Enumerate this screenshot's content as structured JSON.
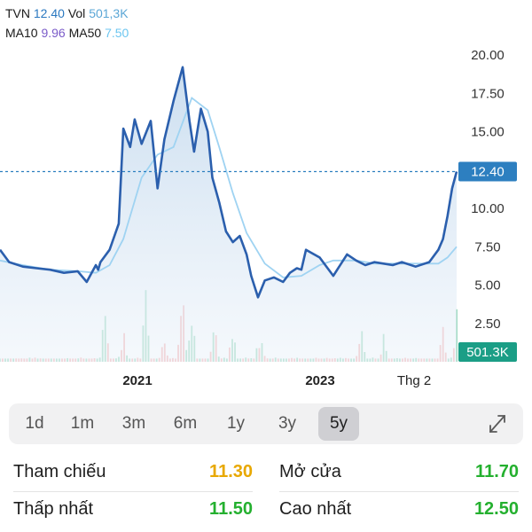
{
  "legend": {
    "ticker": "TVN",
    "price": "12.40",
    "vol_label": "Vol",
    "vol_value": "501,3K",
    "ma10_label": "MA10",
    "ma10_value": "9.96",
    "ma50_label": "MA50",
    "ma50_value": "7.50"
  },
  "chart_data": {
    "type": "line",
    "title": "",
    "xlabel": "",
    "ylabel": "",
    "ylim": [
      0,
      20
    ],
    "y_ticks": [
      "20.00",
      "17.50",
      "15.00",
      "12.50",
      "10.00",
      "7.50",
      "5.00",
      "2.50"
    ],
    "x_labels": [
      "2021",
      "2023",
      "Thg 2"
    ],
    "current_price_label": "12.40",
    "current_volume_label": "501.3K",
    "colors": {
      "price_line": "#2b5fad",
      "ma_line": "#9fd3f2",
      "area_fill_top": "#c8dcef",
      "volume_up": "#63c39a",
      "volume_down": "#f0898a",
      "last_price_badge": "#2d7fc0",
      "volume_badge": "#1b9e86"
    },
    "series": [
      {
        "name": "TVN",
        "x": [
          0,
          0.02,
          0.05,
          0.08,
          0.11,
          0.14,
          0.17,
          0.19,
          0.21,
          0.215,
          0.22,
          0.24,
          0.26,
          0.27,
          0.285,
          0.295,
          0.31,
          0.33,
          0.345,
          0.36,
          0.38,
          0.4,
          0.415,
          0.425,
          0.44,
          0.455,
          0.465,
          0.48,
          0.495,
          0.51,
          0.525,
          0.54,
          0.55,
          0.565,
          0.58,
          0.6,
          0.62,
          0.635,
          0.65,
          0.66,
          0.67,
          0.7,
          0.73,
          0.76,
          0.78,
          0.8,
          0.82,
          0.84,
          0.86,
          0.88,
          0.91,
          0.94,
          0.96,
          0.97,
          0.98,
          0.99,
          1.0
        ],
        "values": [
          7.3,
          6.5,
          6.2,
          6.1,
          6.0,
          5.8,
          5.9,
          5.2,
          6.3,
          6.0,
          6.5,
          7.3,
          9.0,
          15.2,
          14.0,
          15.8,
          14.2,
          15.7,
          11.3,
          14.5,
          17.0,
          19.2,
          15.7,
          13.7,
          16.5,
          15.0,
          12.0,
          10.4,
          8.5,
          7.8,
          8.2,
          7.0,
          5.6,
          4.2,
          5.3,
          5.5,
          5.2,
          5.8,
          6.1,
          6.0,
          7.3,
          6.8,
          5.6,
          7.0,
          6.6,
          6.3,
          6.5,
          6.4,
          6.3,
          6.5,
          6.2,
          6.5,
          7.3,
          8.0,
          9.5,
          11.3,
          12.4
        ]
      },
      {
        "name": "MA50",
        "x": [
          0,
          0.05,
          0.11,
          0.17,
          0.21,
          0.24,
          0.27,
          0.31,
          0.345,
          0.38,
          0.42,
          0.455,
          0.48,
          0.51,
          0.54,
          0.58,
          0.62,
          0.66,
          0.7,
          0.73,
          0.78,
          0.82,
          0.86,
          0.91,
          0.96,
          0.98,
          1.0
        ],
        "values": [
          6.6,
          6.3,
          6.0,
          5.9,
          5.8,
          6.3,
          8.0,
          12.0,
          13.5,
          14.0,
          17.2,
          16.4,
          14.0,
          11.0,
          8.4,
          6.4,
          5.5,
          5.6,
          6.3,
          6.6,
          6.6,
          6.4,
          6.4,
          6.4,
          6.4,
          6.8,
          7.5
        ]
      }
    ],
    "volume_peaks": [
      {
        "x": 0.23,
        "value": 0.55
      },
      {
        "x": 0.27,
        "value": 0.45
      },
      {
        "x": 0.32,
        "value": 0.9
      },
      {
        "x": 0.36,
        "value": 0.35
      },
      {
        "x": 0.4,
        "value": 1.0
      },
      {
        "x": 0.42,
        "value": 0.6
      },
      {
        "x": 0.47,
        "value": 0.5
      },
      {
        "x": 0.51,
        "value": 0.35
      },
      {
        "x": 0.57,
        "value": 0.4
      },
      {
        "x": 0.79,
        "value": 0.4
      },
      {
        "x": 0.84,
        "value": 0.3
      },
      {
        "x": 0.97,
        "value": 0.45
      },
      {
        "x": 1.0,
        "value": 0.55
      }
    ]
  },
  "range_tabs": {
    "items": [
      {
        "label": "1d"
      },
      {
        "label": "1m"
      },
      {
        "label": "3m"
      },
      {
        "label": "6m"
      },
      {
        "label": "1y"
      },
      {
        "label": "3y"
      },
      {
        "label": "5y"
      }
    ],
    "selected": "5y",
    "expand_icon": "expand-arrows-icon"
  },
  "stats": {
    "reference_label": "Tham chiếu",
    "reference_value": "11.30",
    "reference_color": "#e8a800",
    "open_label": "Mở cửa",
    "open_value": "11.70",
    "open_color": "#24b02f",
    "low_label": "Thấp nhất",
    "low_value": "11.50",
    "low_color": "#24b02f",
    "high_label": "Cao nhất",
    "high_value": "12.50",
    "high_color": "#24b02f"
  }
}
